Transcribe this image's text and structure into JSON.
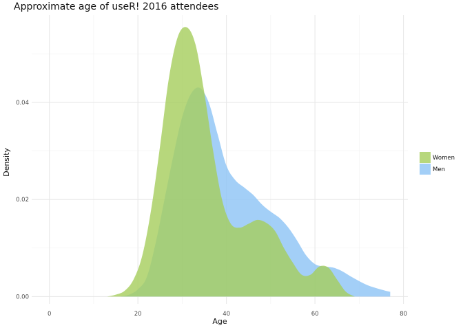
{
  "chart_data": {
    "type": "area",
    "title": "Approximate age of useR! 2016 attendees",
    "xlabel": "Age",
    "ylabel": "Density",
    "xlim": [
      -4,
      81
    ],
    "ylim": [
      -0.0015,
      0.058
    ],
    "x_ticks": [
      0,
      20,
      40,
      60,
      80
    ],
    "x_tick_labels": [
      "0",
      "20",
      "40",
      "60",
      "80"
    ],
    "y_ticks": [
      0.0,
      0.02,
      0.04
    ],
    "y_tick_labels": [
      "0.00",
      "0.02",
      "0.04"
    ],
    "grid": true,
    "legend_position": "right",
    "series": [
      {
        "name": "Women",
        "color": "#a5cd5b",
        "x": [
          13,
          15,
          17,
          19,
          21,
          23,
          25,
          27,
          29,
          31,
          33,
          35,
          37,
          39,
          41,
          43,
          45,
          47,
          49,
          51,
          53,
          55,
          57,
          59,
          61,
          63,
          65,
          67,
          69
        ],
        "values": [
          0.0,
          0.0004,
          0.0012,
          0.0035,
          0.0085,
          0.018,
          0.031,
          0.045,
          0.0535,
          0.0555,
          0.052,
          0.042,
          0.03,
          0.02,
          0.015,
          0.0142,
          0.015,
          0.0158,
          0.0152,
          0.0135,
          0.01,
          0.007,
          0.0045,
          0.0045,
          0.0062,
          0.006,
          0.0035,
          0.001,
          0.0
        ]
      },
      {
        "name": "Men",
        "color": "#8cc3f5",
        "x": [
          16,
          18,
          20,
          22,
          24,
          26,
          28,
          30,
          32,
          34,
          36,
          38,
          40,
          42,
          44,
          46,
          48,
          50,
          52,
          54,
          56,
          58,
          60,
          62,
          64,
          66,
          68,
          70,
          72,
          74,
          76,
          77
        ],
        "values": [
          0.0,
          0.0004,
          0.0015,
          0.004,
          0.011,
          0.02,
          0.029,
          0.037,
          0.0418,
          0.043,
          0.04,
          0.0335,
          0.027,
          0.024,
          0.0225,
          0.021,
          0.019,
          0.0175,
          0.0162,
          0.0142,
          0.0115,
          0.0085,
          0.0067,
          0.0062,
          0.006,
          0.0053,
          0.0042,
          0.0032,
          0.0023,
          0.0017,
          0.0012,
          0.001
        ]
      }
    ]
  }
}
